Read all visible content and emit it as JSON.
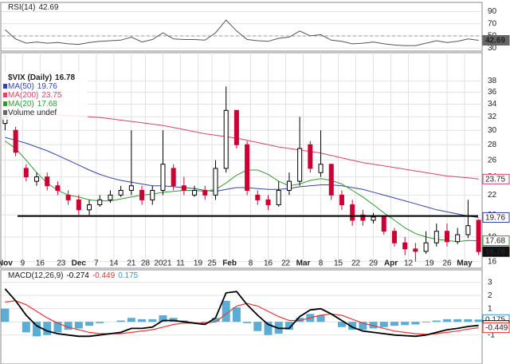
{
  "chart_data": [
    {
      "type": "line",
      "title": "RSI(14)",
      "last": 42.69,
      "color": "#555555",
      "midline": 50,
      "xlim": [
        -1,
        136
      ],
      "x": [
        0,
        3,
        6,
        9,
        12,
        15,
        18,
        21,
        24,
        27,
        30,
        33,
        36,
        39,
        42,
        45,
        48,
        51,
        54,
        57,
        60,
        63,
        66,
        69,
        72,
        75,
        78,
        81,
        84,
        87,
        90,
        93,
        96,
        99,
        102,
        105,
        108,
        111,
        114,
        117,
        120,
        123,
        126,
        129,
        132,
        135
      ],
      "values": [
        60,
        45,
        38,
        40,
        38,
        39,
        37,
        36,
        39,
        41,
        42,
        43,
        48,
        40,
        44,
        55,
        45,
        44,
        44,
        43,
        55,
        76,
        58,
        44,
        42,
        41,
        46,
        48,
        58,
        50,
        52,
        43,
        41,
        37,
        38,
        40,
        37,
        35,
        34,
        34,
        38,
        42,
        39,
        41,
        45,
        42.69
      ],
      "ylim": [
        25,
        105
      ],
      "yticks": [
        90,
        70,
        50,
        30
      ],
      "grid": true
    },
    {
      "type": "candlestick",
      "title": "$VIX (Daily)",
      "last": 16.78,
      "log_scale": true,
      "grid": true,
      "up_color": "#000000",
      "down_color": "#cc0033",
      "volume_legend": "Volume undef",
      "support_line": 19.9,
      "xlim": [
        -1,
        136
      ],
      "x": [
        0,
        3,
        6,
        9,
        12,
        15,
        18,
        21,
        24,
        27,
        30,
        33,
        36,
        39,
        42,
        45,
        48,
        51,
        54,
        57,
        60,
        63,
        66,
        69,
        72,
        75,
        78,
        81,
        84,
        87,
        90,
        93,
        96,
        99,
        102,
        105,
        108,
        111,
        114,
        117,
        120,
        123,
        126,
        129,
        132,
        135
      ],
      "open": [
        31,
        30,
        25,
        23.5,
        24,
        23,
        22,
        21.5,
        20.5,
        21,
        21.5,
        22,
        22.5,
        22.5,
        21.5,
        22.5,
        25,
        23,
        22,
        22.5,
        22,
        25,
        33,
        28,
        22,
        21.5,
        21,
        22.5,
        23.5,
        28,
        24.5,
        25.5,
        22,
        21,
        20,
        19.5,
        19.8,
        18.5,
        17.5,
        17,
        16.8,
        17.5,
        18.5,
        17.6,
        18.2,
        19.5
      ],
      "high": [
        33,
        30.5,
        25.5,
        24.5,
        24.5,
        23.5,
        22.5,
        22,
        21.5,
        22,
        22.5,
        23,
        30,
        23,
        23,
        30,
        25.5,
        24,
        23,
        23,
        26,
        37,
        33,
        28.5,
        22.5,
        22,
        23.5,
        24.5,
        32,
        28.5,
        30,
        25.5,
        22.5,
        21.5,
        20.5,
        20.2,
        20,
        18.8,
        18,
        17.5,
        18.5,
        19.2,
        19.2,
        18.8,
        21.5,
        19.6
      ],
      "low": [
        30,
        26.5,
        23.5,
        23,
        22.5,
        22,
        21,
        20,
        20,
        20.8,
        21.2,
        21.8,
        22,
        21,
        21,
        22,
        22.5,
        22,
        21.8,
        21.5,
        21.5,
        24.5,
        27.5,
        22,
        21,
        20.5,
        20.8,
        22,
        23,
        24.5,
        24,
        21.5,
        20.5,
        19,
        19,
        19.2,
        18.2,
        17.2,
        16.5,
        16,
        16.6,
        17.2,
        17.2,
        17.4,
        17.9,
        16.5
      ],
      "close": [
        32,
        27,
        24,
        24,
        23,
        22.5,
        21.5,
        20.5,
        21,
        21.5,
        22,
        22.5,
        23,
        21.5,
        22.5,
        25.5,
        23,
        22.5,
        22.5,
        22,
        25,
        33,
        28,
        22.5,
        21.5,
        21,
        22.5,
        23.5,
        27.5,
        25,
        25.5,
        22,
        21,
        19.5,
        19.5,
        19.8,
        18.5,
        17.5,
        17,
        16.8,
        17.5,
        18.5,
        17.6,
        18.2,
        19,
        16.78
      ],
      "series": [
        {
          "name": "MA(50)",
          "color": "#3344aa",
          "last": 19.76,
          "values": [
            29,
            28.6,
            28.2,
            27.7,
            27.2,
            26.6,
            26,
            25.4,
            24.8,
            24.3,
            23.9,
            23.6,
            23.4,
            23.2,
            23,
            23,
            22.9,
            22.8,
            22.7,
            22.5,
            22.4,
            22.6,
            22.8,
            22.8,
            22.7,
            22.6,
            22.6,
            22.7,
            22.9,
            23,
            23.1,
            23.1,
            23,
            22.8,
            22.6,
            22.3,
            22,
            21.7,
            21.4,
            21.1,
            20.8,
            20.5,
            20.3,
            20.1,
            19.9,
            19.76
          ]
        },
        {
          "name": "MA(200)",
          "color": "#dd4466",
          "last": 23.75,
          "values": [
            32,
            32.1,
            32.2,
            32.3,
            32.3,
            32.3,
            32.2,
            32.1,
            32,
            31.9,
            31.7,
            31.5,
            31.3,
            31.1,
            30.9,
            30.7,
            30.4,
            30.1,
            29.8,
            29.5,
            29.3,
            29.1,
            28.9,
            28.6,
            28.3,
            28,
            27.7,
            27.5,
            27.3,
            27.1,
            26.9,
            26.6,
            26.3,
            26,
            25.7,
            25.5,
            25.3,
            25.1,
            24.9,
            24.7,
            24.5,
            24.3,
            24.1,
            24,
            23.9,
            23.75
          ]
        },
        {
          "name": "MA(20)",
          "color": "#339933",
          "last": 17.68,
          "values": [
            28.5,
            27.5,
            26,
            24.5,
            23.3,
            22.5,
            22,
            21.8,
            21.5,
            21.4,
            21.4,
            21.6,
            21.8,
            22,
            22.1,
            22.3,
            22.4,
            22.5,
            22.5,
            22.4,
            22.6,
            23.3,
            24.2,
            24.8,
            24.8,
            24.3,
            23.5,
            23,
            23.2,
            23.6,
            23.8,
            23.6,
            23.2,
            22.5,
            21.8,
            21,
            20.2,
            19.5,
            18.8,
            18.3,
            18,
            17.8,
            17.7,
            17.6,
            17.7,
            17.68
          ]
        }
      ],
      "ylim": [
        15.5,
        43.5
      ],
      "yticks": [
        16,
        18,
        20,
        22,
        24,
        26,
        28,
        30,
        32,
        34,
        36,
        38
      ],
      "xticks": [
        {
          "value": 0,
          "label": "Nov"
        },
        {
          "value": 5,
          "label": "9"
        },
        {
          "value": 10,
          "label": "16"
        },
        {
          "value": 16,
          "label": "23"
        },
        {
          "value": 21,
          "label": "Dec"
        },
        {
          "value": 26,
          "label": "7"
        },
        {
          "value": 31,
          "label": "14"
        },
        {
          "value": 36,
          "label": "21"
        },
        {
          "value": 40,
          "label": "28"
        },
        {
          "value": 45,
          "label": "2021"
        },
        {
          "value": 50,
          "label": "11"
        },
        {
          "value": 55,
          "label": "19"
        },
        {
          "value": 59,
          "label": "25"
        },
        {
          "value": 64,
          "label": "Feb"
        },
        {
          "value": 70,
          "label": "8"
        },
        {
          "value": 75,
          "label": "16"
        },
        {
          "value": 80,
          "label": "22"
        },
        {
          "value": 85,
          "label": "Mar"
        },
        {
          "value": 90,
          "label": "8"
        },
        {
          "value": 95,
          "label": "15"
        },
        {
          "value": 100,
          "label": "22"
        },
        {
          "value": 105,
          "label": "29"
        },
        {
          "value": 110,
          "label": "Apr"
        },
        {
          "value": 115,
          "label": "12"
        },
        {
          "value": 121,
          "label": "19"
        },
        {
          "value": 126,
          "label": "26"
        },
        {
          "value": 131,
          "label": "May"
        }
      ]
    },
    {
      "type": "macd",
      "title": "MACD(12,26,9)",
      "grid": true,
      "xlim": [
        -1,
        136
      ],
      "x": [
        0,
        3,
        6,
        9,
        12,
        15,
        18,
        21,
        24,
        27,
        30,
        33,
        36,
        39,
        42,
        45,
        48,
        51,
        54,
        57,
        60,
        63,
        66,
        69,
        72,
        75,
        78,
        81,
        84,
        87,
        90,
        93,
        96,
        99,
        102,
        105,
        108,
        111,
        114,
        117,
        120,
        123,
        126,
        129,
        132,
        135
      ],
      "macd": {
        "color": "#000000",
        "last": -0.274,
        "values": [
          2.5,
          1.6,
          0.5,
          -0.3,
          -0.7,
          -0.9,
          -1.0,
          -1.1,
          -1.1,
          -1.0,
          -0.9,
          -0.8,
          -0.5,
          -0.5,
          -0.4,
          0.1,
          0.1,
          0,
          -0.1,
          -0.2,
          0.3,
          2.2,
          2.3,
          1.3,
          0.5,
          -0.2,
          -0.5,
          -0.5,
          0.4,
          0.9,
          1.0,
          0.6,
          0.1,
          -0.4,
          -0.7,
          -0.8,
          -0.9,
          -1.0,
          -1.05,
          -1.1,
          -1.0,
          -0.8,
          -0.6,
          -0.5,
          -0.35,
          -0.274
        ]
      },
      "signal": {
        "color": "#ee3333",
        "last": -0.449,
        "values": [
          1.5,
          1.6,
          1.3,
          0.8,
          0.3,
          -0.1,
          -0.4,
          -0.6,
          -0.8,
          -0.9,
          -0.9,
          -0.9,
          -0.8,
          -0.7,
          -0.6,
          -0.4,
          -0.2,
          -0.1,
          -0.1,
          -0.1,
          0,
          0.6,
          1.2,
          1.4,
          1.2,
          0.8,
          0.4,
          0.1,
          0.1,
          0.3,
          0.5,
          0.6,
          0.5,
          0.2,
          -0.1,
          -0.3,
          -0.5,
          -0.7,
          -0.8,
          -0.9,
          -0.95,
          -0.9,
          -0.8,
          -0.7,
          -0.55,
          -0.449
        ]
      },
      "histogram": {
        "color": "#3399cc",
        "last": 0.175,
        "values": [
          1.0,
          0,
          -0.8,
          -1.1,
          -1.0,
          -0.8,
          -0.6,
          -0.5,
          -0.3,
          -0.1,
          0,
          0.1,
          0.3,
          0.2,
          0.2,
          0.5,
          0.3,
          0.1,
          0,
          -0.1,
          0.3,
          1.6,
          1.1,
          -0.1,
          -0.7,
          -1.0,
          -0.9,
          -0.6,
          0.3,
          0.6,
          0.5,
          0,
          -0.4,
          -0.6,
          -0.6,
          -0.5,
          -0.4,
          -0.3,
          -0.25,
          -0.2,
          -0.05,
          0.1,
          0.2,
          0.2,
          0.2,
          0.175
        ]
      },
      "ylim": [
        -3.2,
        3.95
      ],
      "yticks": [
        3,
        2,
        1,
        0,
        -1
      ]
    }
  ]
}
